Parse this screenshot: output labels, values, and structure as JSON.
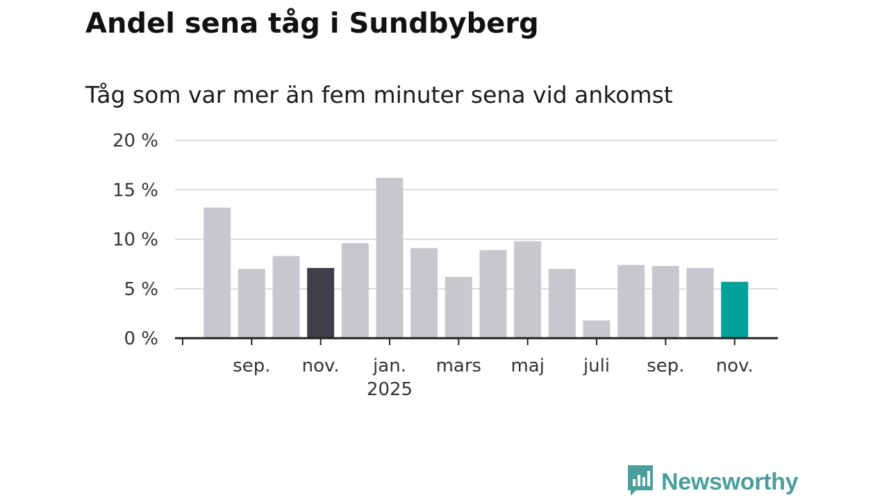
{
  "title": "Andel sena tåg i Sundbyberg",
  "subtitle": "Tåg som var mer än fem minuter sena vid ankomst",
  "brand": {
    "name": "Newsworthy",
    "color": "#4a9e9b",
    "icon": "bar-chart-speech-bubble-icon"
  },
  "chart_data": {
    "type": "bar",
    "unit": "%",
    "ylim": [
      0,
      20
    ],
    "yticks": [
      0,
      5,
      10,
      15,
      20
    ],
    "ytick_labels": [
      "0 %",
      "5 %",
      "10 %",
      "15 %",
      "20 %"
    ],
    "grid": true,
    "categories": [
      "aug. 2024",
      "sep. 2024",
      "okt. 2024",
      "nov. 2024",
      "dec. 2024",
      "jan. 2025",
      "feb. 2025",
      "mars 2025",
      "apr. 2025",
      "maj 2025",
      "juni 2025",
      "juli 2025",
      "aug. 2025",
      "sep. 2025",
      "okt. 2025",
      "nov. 2025"
    ],
    "values": [
      13.2,
      7.0,
      8.3,
      7.1,
      9.6,
      16.2,
      9.1,
      6.2,
      8.9,
      9.8,
      7.0,
      1.8,
      7.4,
      7.3,
      7.1,
      5.7
    ],
    "colors": [
      "#c8c7cd",
      "#c8c7cd",
      "#c8c7cd",
      "#403e4a",
      "#c8c7cd",
      "#c8c7cd",
      "#c8c7cd",
      "#c8c7cd",
      "#c8c7cd",
      "#c8c7cd",
      "#c8c7cd",
      "#c8c7cd",
      "#c8c7cd",
      "#c8c7cd",
      "#c8c7cd",
      "#00a19a"
    ],
    "xtick_labels": [
      {
        "index": 1,
        "label": "sep.",
        "sublabel": ""
      },
      {
        "index": 3,
        "label": "nov.",
        "sublabel": ""
      },
      {
        "index": 5,
        "label": "jan.",
        "sublabel": "2025"
      },
      {
        "index": 7,
        "label": "mars",
        "sublabel": ""
      },
      {
        "index": 9,
        "label": "maj",
        "sublabel": ""
      },
      {
        "index": 11,
        "label": "juli",
        "sublabel": ""
      },
      {
        "index": 13,
        "label": "sep.",
        "sublabel": ""
      },
      {
        "index": 15,
        "label": "nov.",
        "sublabel": ""
      }
    ]
  }
}
